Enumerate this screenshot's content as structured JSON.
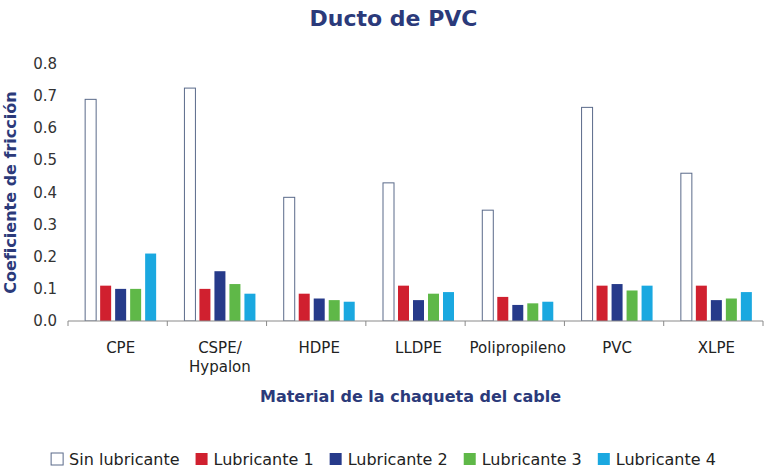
{
  "chart_data": {
    "type": "bar",
    "title": "Ducto de PVC",
    "x_label": "Material de la chaqueta del cable",
    "y_label": "Coeficiente de fricción",
    "categories": [
      "CPE",
      "CSPE/\nHypalon",
      "HDPE",
      "LLDPE",
      "Polipropileno",
      "PVC",
      "XLPE"
    ],
    "series": [
      {
        "name": "Sin lubricante",
        "color": "#ffffff",
        "values": [
          0.69,
          0.725,
          0.385,
          0.43,
          0.345,
          0.665,
          0.46
        ]
      },
      {
        "name": "Lubricante 1",
        "color": "#d0202f",
        "values": [
          0.11,
          0.1,
          0.085,
          0.11,
          0.075,
          0.11,
          0.11
        ]
      },
      {
        "name": "Lubricante 2",
        "color": "#263a8a",
        "values": [
          0.1,
          0.155,
          0.07,
          0.065,
          0.05,
          0.115,
          0.065
        ]
      },
      {
        "name": "Lubricante 3",
        "color": "#5fb848",
        "values": [
          0.1,
          0.115,
          0.065,
          0.085,
          0.055,
          0.095,
          0.07
        ]
      },
      {
        "name": "Lubricante 4",
        "color": "#1aa8e0",
        "values": [
          0.21,
          0.085,
          0.06,
          0.09,
          0.06,
          0.11,
          0.09
        ]
      }
    ],
    "ylim": [
      0,
      0.8
    ],
    "yticks": [
      {
        "value": 0,
        "label": "0.0"
      },
      0.1,
      0.2,
      0.3,
      0.4,
      0.5,
      0.6,
      0.7,
      0.8
    ],
    "grid": false,
    "legend": "bottom"
  }
}
